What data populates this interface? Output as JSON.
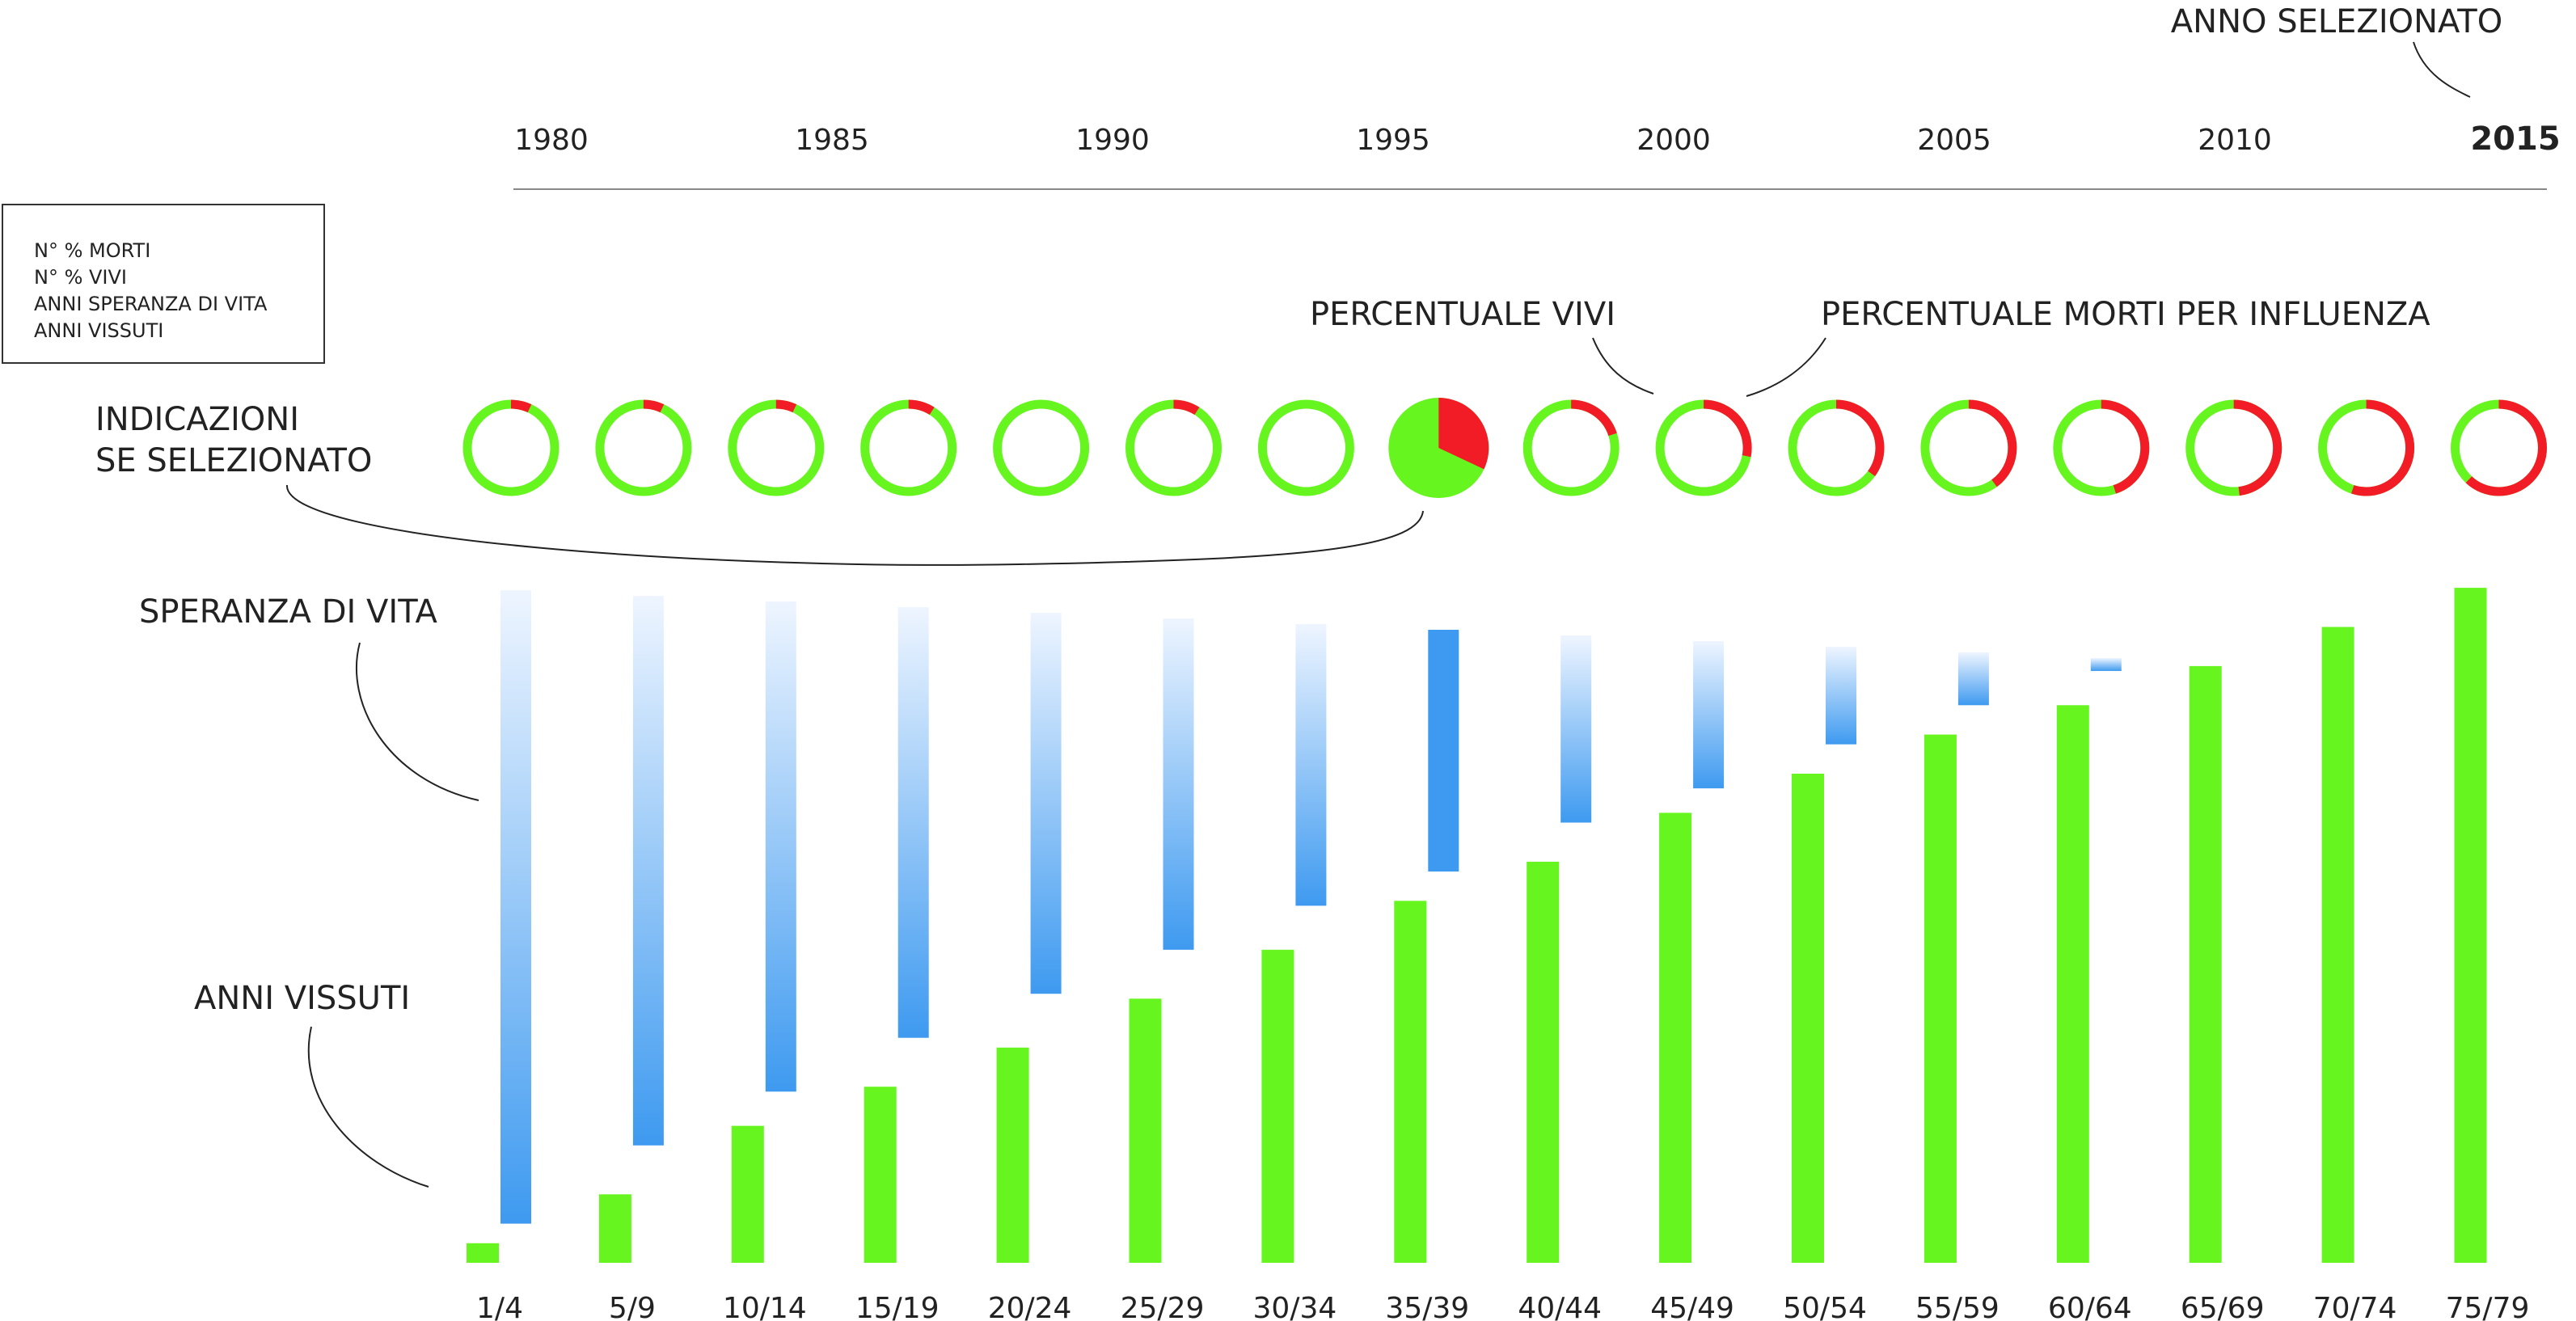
{
  "timeline": {
    "years": [
      "1980",
      "1985",
      "1990",
      "1995",
      "2000",
      "2005",
      "2010",
      "2015"
    ],
    "selected_year": "2015",
    "selected_label": "ANNO SELEZIONATO"
  },
  "legend_box": {
    "items": [
      "N° % MORTI",
      "N° % VIVI",
      "ANNI SPERANZA DI VITA",
      "ANNI VISSUTI"
    ]
  },
  "annotations": {
    "percentuale_vivi": "PERCENTUALE VIVI",
    "percentuale_morti": "PERCENTUALE MORTI PER INFLUENZA",
    "indicazioni_line1": "INDICAZIONI",
    "indicazioni_line2": "SE SELEZIONATO",
    "speranza_di_vita": "SPERANZA DI VITA",
    "anni_vissuti": "ANNI VISSUTI"
  },
  "colors": {
    "alive": "#66f51f",
    "dead": "#f21c26",
    "expectancy_top": "#eef5ff",
    "expectancy_bottom": "#3e9af0",
    "expectancy_selected": "#3e9af0",
    "axis_line": "#888888",
    "text": "#222222"
  },
  "chart_data": {
    "type": "bar",
    "categories": [
      "1/4",
      "5/9",
      "10/14",
      "15/19",
      "20/24",
      "25/29",
      "30/34",
      "35/39",
      "40/44",
      "45/49",
      "50/54",
      "55/59",
      "60/64",
      "65/69",
      "70/74",
      "75/79"
    ],
    "selected_index": 7,
    "series": [
      {
        "name": "ANNI VISSUTI",
        "values": [
          2.0,
          7.0,
          14.0,
          18.0,
          22.0,
          27.0,
          32.0,
          37.0,
          41.0,
          46.0,
          50.0,
          54.0,
          57.0,
          61.0,
          65.0,
          69.0
        ]
      },
      {
        "name": "SPERANZA DI VITA",
        "values": [
          4.0,
          12.0,
          17.5,
          23.0,
          27.5,
          32.0,
          36.5,
          40.0,
          45.0,
          48.5,
          53.0,
          57.0,
          60.5,
          63.5,
          67.0,
          70.5
        ]
      }
    ],
    "dead_share": [
      0.07,
      0.07,
      0.07,
      0.09,
      0.0,
      0.09,
      0.0,
      0.32,
      0.2,
      0.28,
      0.35,
      0.4,
      0.45,
      0.48,
      0.55,
      0.62
    ],
    "ylim": [
      0,
      100
    ]
  }
}
